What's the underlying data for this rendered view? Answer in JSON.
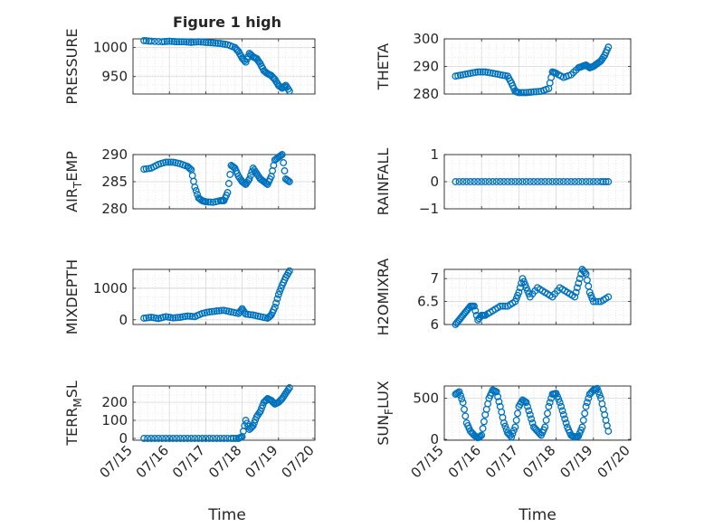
{
  "figure": {
    "title": "Figure 1 high",
    "colors": {
      "marker": "#0072bd",
      "axis": "#262626",
      "grid": "#d9d9d9"
    }
  },
  "chart_data": [
    {
      "type": "scatter",
      "ylabel": "PRESSURE",
      "ylim": [
        920,
        1015
      ],
      "yticks": [
        950,
        1000
      ],
      "xlim": [
        0,
        5
      ],
      "x": [
        0.3,
        0.5,
        0.8,
        1.0,
        1.2,
        1.4,
        1.6,
        1.8,
        2.0,
        2.2,
        2.4,
        2.6,
        2.8,
        2.9,
        3.0,
        3.1,
        3.2,
        3.3,
        3.4,
        3.5,
        3.6,
        3.7,
        3.8,
        3.9,
        4.0,
        4.1,
        4.2,
        4.3
      ],
      "y": [
        1012,
        1011,
        1010,
        1011,
        1010,
        1010,
        1009,
        1010,
        1009,
        1008,
        1007,
        1005,
        1000,
        993,
        982,
        975,
        990,
        984,
        981,
        972,
        960,
        955,
        952,
        945,
        935,
        930,
        935,
        925
      ]
    },
    {
      "type": "scatter",
      "ylabel": "THETA",
      "ylim": [
        280,
        300
      ],
      "yticks": [
        280,
        290,
        300
      ],
      "xlim": [
        0,
        5
      ],
      "x": [
        0.3,
        0.5,
        0.7,
        0.9,
        1.1,
        1.3,
        1.5,
        1.7,
        1.8,
        1.9,
        2.0,
        2.2,
        2.4,
        2.6,
        2.8,
        2.9,
        3.0,
        3.2,
        3.4,
        3.6,
        3.7,
        3.8,
        3.9,
        4.0,
        4.1,
        4.2,
        4.3,
        4.4
      ],
      "y": [
        286.5,
        287,
        287.5,
        288,
        288,
        287.5,
        287,
        286.5,
        284,
        281,
        280.5,
        280.5,
        280.8,
        281,
        282,
        288,
        287.5,
        286,
        287,
        289.5,
        290,
        290.5,
        289.5,
        290,
        291,
        292,
        294,
        297
      ]
    },
    {
      "type": "scatter",
      "ylabel": "AIR_TEMP",
      "ylim": [
        280,
        290
      ],
      "yticks": [
        280,
        285,
        290
      ],
      "xlim": [
        0,
        5
      ],
      "x": [
        0.3,
        0.5,
        0.7,
        0.9,
        1.1,
        1.3,
        1.5,
        1.6,
        1.7,
        1.8,
        1.9,
        2.0,
        2.2,
        2.4,
        2.5,
        2.6,
        2.7,
        2.8,
        2.9,
        3.0,
        3.1,
        3.2,
        3.3,
        3.4,
        3.5,
        3.6,
        3.7,
        3.8,
        3.9,
        4.0,
        4.1,
        4.2,
        4.3
      ],
      "y": [
        287.3,
        287.5,
        288.2,
        288.6,
        288.6,
        288.3,
        287.8,
        287.2,
        284,
        282,
        281.5,
        281.3,
        281.2,
        281.5,
        281.5,
        283,
        288,
        287.5,
        286,
        285,
        284.5,
        285.5,
        287.5,
        286.5,
        285.5,
        285,
        284.5,
        286,
        289,
        289.5,
        290,
        285.5,
        285
      ]
    },
    {
      "type": "scatter",
      "ylabel": "RAINFALL",
      "ylim": [
        -1,
        1
      ],
      "yticks": [
        -1,
        0,
        1
      ],
      "xlim": [
        0,
        5
      ],
      "x": [
        0.3,
        0.6,
        0.9,
        1.2,
        1.5,
        1.8,
        2.1,
        2.4,
        2.7,
        3.0,
        3.3,
        3.6,
        3.9,
        4.2,
        4.4
      ],
      "y": [
        0,
        0,
        0,
        0,
        0,
        0,
        0,
        0,
        0,
        0,
        0,
        0,
        0,
        0,
        0
      ]
    },
    {
      "type": "scatter",
      "ylabel": "MIXDEPTH",
      "ylim": [
        -150,
        1600
      ],
      "yticks": [
        0,
        1000
      ],
      "xlim": [
        0,
        5
      ],
      "x": [
        0.3,
        0.5,
        0.7,
        0.9,
        1.1,
        1.3,
        1.5,
        1.7,
        1.9,
        2.1,
        2.3,
        2.5,
        2.7,
        2.9,
        3.0,
        3.1,
        3.3,
        3.5,
        3.7,
        3.8,
        3.9,
        4.0,
        4.1,
        4.2,
        4.3
      ],
      "y": [
        50,
        80,
        40,
        100,
        60,
        80,
        120,
        100,
        200,
        250,
        280,
        300,
        250,
        200,
        350,
        180,
        150,
        100,
        50,
        150,
        400,
        800,
        1100,
        1350,
        1550
      ]
    },
    {
      "type": "scatter",
      "ylabel": "H2OMIXRA",
      "ylim": [
        6,
        7.2
      ],
      "yticks": [
        6,
        6.5,
        7
      ],
      "xlim": [
        0,
        5
      ],
      "x": [
        0.3,
        0.4,
        0.5,
        0.6,
        0.7,
        0.8,
        0.9,
        1.0,
        1.1,
        1.3,
        1.5,
        1.7,
        1.9,
        2.0,
        2.1,
        2.2,
        2.3,
        2.5,
        2.7,
        2.9,
        3.1,
        3.3,
        3.5,
        3.6,
        3.7,
        3.8,
        3.9,
        4.0,
        4.2,
        4.4
      ],
      "y": [
        6.0,
        6.1,
        6.2,
        6.3,
        6.4,
        6.4,
        6.1,
        6.2,
        6.2,
        6.3,
        6.4,
        6.4,
        6.5,
        6.7,
        7.0,
        6.8,
        6.6,
        6.8,
        6.7,
        6.6,
        6.8,
        6.7,
        6.6,
        6.9,
        7.2,
        7.1,
        6.7,
        6.5,
        6.5,
        6.6
      ]
    },
    {
      "type": "scatter",
      "ylabel": "TERR_MSL",
      "ylim": [
        -10,
        290
      ],
      "yticks": [
        0,
        100,
        200
      ],
      "xlim": [
        0,
        5
      ],
      "x": [
        0.3,
        0.6,
        0.9,
        1.2,
        1.5,
        1.8,
        2.1,
        2.4,
        2.7,
        2.9,
        3.0,
        3.1,
        3.2,
        3.3,
        3.4,
        3.5,
        3.6,
        3.7,
        3.8,
        3.9,
        4.0,
        4.1,
        4.2,
        4.3
      ],
      "y": [
        0,
        0,
        0,
        0,
        0,
        0,
        0,
        0,
        0,
        0,
        10,
        100,
        50,
        70,
        120,
        150,
        200,
        220,
        210,
        190,
        200,
        220,
        250,
        280
      ]
    },
    {
      "type": "scatter",
      "ylabel": "SUN_FLUX",
      "ylim": [
        -10,
        650
      ],
      "yticks": [
        0,
        500
      ],
      "xlim": [
        0,
        5
      ],
      "x": [
        0.3,
        0.4,
        0.5,
        0.6,
        0.7,
        0.8,
        0.9,
        1.0,
        1.1,
        1.2,
        1.3,
        1.4,
        1.5,
        1.6,
        1.7,
        1.8,
        1.9,
        2.0,
        2.1,
        2.2,
        2.3,
        2.4,
        2.5,
        2.6,
        2.7,
        2.8,
        2.9,
        3.0,
        3.1,
        3.2,
        3.3,
        3.4,
        3.5,
        3.6,
        3.7,
        3.8,
        3.9,
        4.0,
        4.1,
        4.2,
        4.3,
        4.4
      ],
      "y": [
        550,
        580,
        450,
        200,
        100,
        50,
        20,
        50,
        300,
        500,
        600,
        580,
        400,
        200,
        80,
        30,
        150,
        400,
        480,
        450,
        300,
        150,
        100,
        50,
        150,
        400,
        550,
        560,
        450,
        300,
        150,
        50,
        30,
        40,
        150,
        400,
        550,
        600,
        620,
        500,
        300,
        100
      ]
    }
  ],
  "shared_x": {
    "tick_values": [
      0,
      1,
      2,
      3,
      4,
      5
    ],
    "tick_labels": [
      "07/15",
      "07/16",
      "07/17",
      "07/18",
      "07/19",
      "07/20"
    ],
    "xlabel": "Time"
  }
}
